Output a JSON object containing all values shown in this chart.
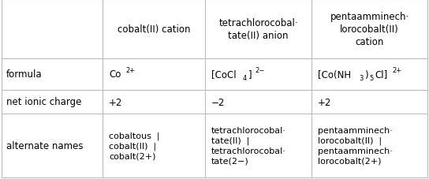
{
  "col_headers": [
    "cobalt(II) cation",
    "tetrachlorocobaltate­tate(II) anion",
    "pentaamminech­lorocobalt(II)\ncation"
  ],
  "col_headers_display": [
    "cobalt(II) cation",
    "tetrachlorocobal·\ntate(II) anion",
    "pentaamminech·\nlorocobalt(II)\ncation"
  ],
  "charge_row": [
    "+2",
    "−2",
    "+2"
  ],
  "alt_names_row": [
    "cobaltous  |\ncobalt(II)  |\ncobalt(2+)",
    "tetrachlorocobal·\ntate(II)  |\ntetrachlorocobal·\ntate(2−)",
    "pentaamminech·\nlorocobalt(II)  |\npentaamminech·\nlorocobalt(2+)"
  ],
  "bg_color": "#ffffff",
  "line_color": "#bbbbbb",
  "text_color": "#000000",
  "font_size": 8.5,
  "sub_font_size": 6.0
}
